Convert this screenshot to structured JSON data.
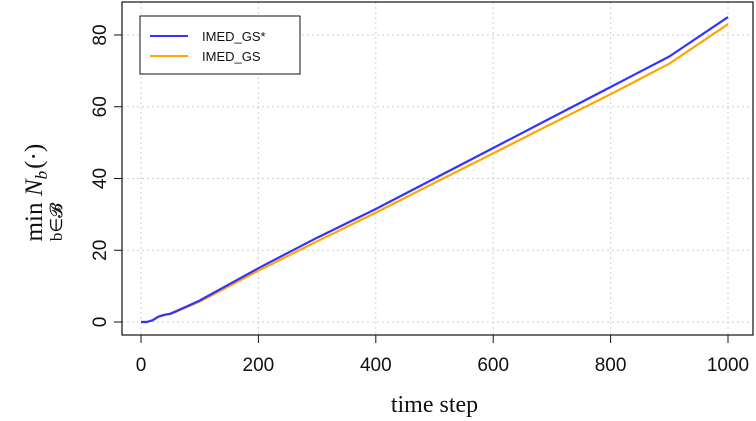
{
  "chart_data": {
    "type": "line",
    "title": "",
    "xlabel": "time step",
    "ylabel": {
      "operator": "min",
      "subscript": "b∈𝓑",
      "expression": "N_b(·)",
      "symbol": "N",
      "symbol_subscript": "b",
      "argument": "(·)"
    },
    "xlim": [
      0,
      1000
    ],
    "ylim": [
      -1,
      87
    ],
    "x_ticks": [
      0,
      200,
      400,
      600,
      800,
      1000
    ],
    "x_tick_labels": [
      "0",
      "200",
      "400",
      "600",
      "800",
      "1000"
    ],
    "y_ticks": [
      0,
      20,
      40,
      60,
      80
    ],
    "y_tick_labels": [
      "0",
      "20",
      "40",
      "60",
      "80"
    ],
    "grid": true,
    "legend_position": "top-left",
    "series": [
      {
        "name": "IMED_GS*",
        "color": "#3333ff",
        "x": [
          0,
          10,
          20,
          30,
          40,
          50,
          60,
          80,
          100,
          150,
          200,
          300,
          400,
          500,
          600,
          700,
          800,
          900,
          1000
        ],
        "y": [
          0,
          0,
          0.5,
          1.5,
          2,
          2.3,
          3,
          4.5,
          6,
          10.5,
          15,
          23.5,
          31.5,
          40,
          48.5,
          57,
          65.5,
          74,
          85
        ]
      },
      {
        "name": "IMED_GS",
        "color": "#ffa500",
        "x": [
          0,
          10,
          20,
          30,
          40,
          50,
          60,
          80,
          100,
          150,
          200,
          300,
          400,
          500,
          600,
          700,
          800,
          900,
          1000
        ],
        "y": [
          0,
          0,
          0.5,
          1.5,
          2,
          2.2,
          2.9,
          4.3,
          5.7,
          10,
          14.3,
          22.5,
          30.5,
          38.8,
          47,
          55.3,
          63.5,
          72,
          83
        ]
      }
    ]
  }
}
